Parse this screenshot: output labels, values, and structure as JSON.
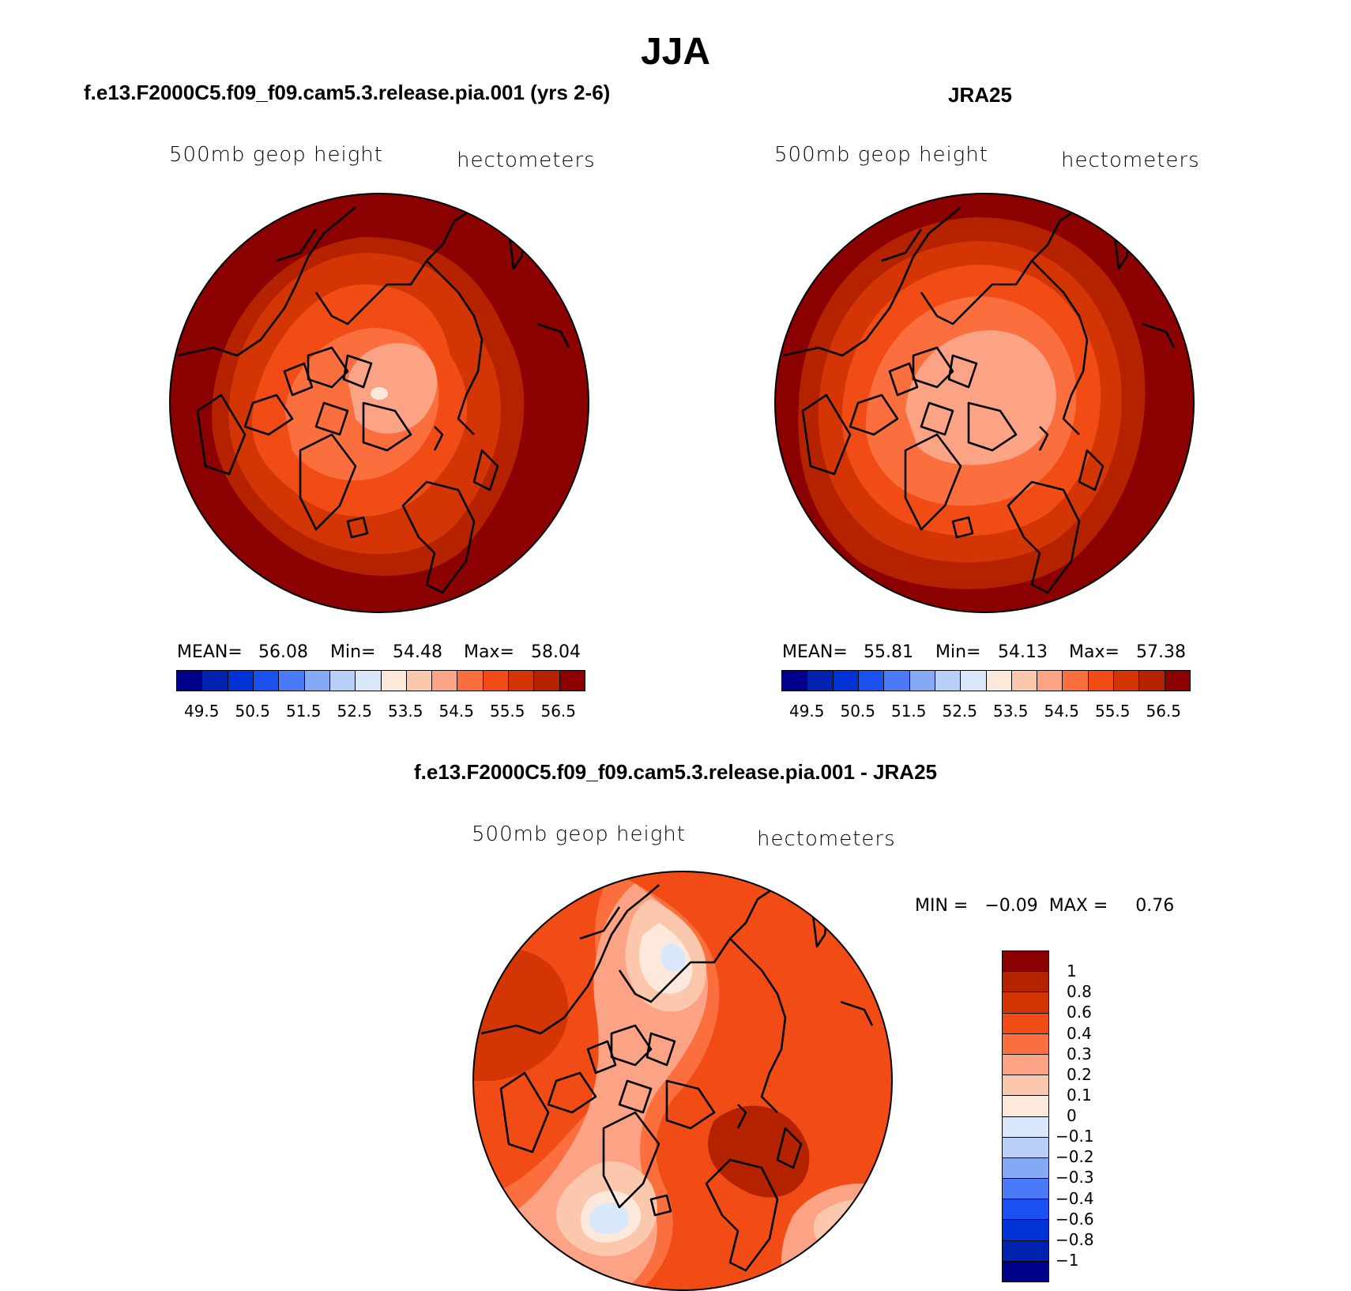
{
  "figure": {
    "title": "JJA",
    "panels": {
      "model": {
        "title": "f.e13.F2000C5.f09_f09.cam5.3.release.pia.001 (yrs 2-6)",
        "variable": "500mb geop height",
        "units": "hectometers",
        "mean_label": "MEAN=",
        "mean": "56.08",
        "min_label": "Min=",
        "min": "54.48",
        "max_label": "Max=",
        "max": "58.04"
      },
      "obs": {
        "title": "JRA25",
        "variable": "500mb geop height",
        "units": "hectometers",
        "mean_label": "MEAN=",
        "mean": "55.81",
        "min_label": "Min=",
        "min": "54.13",
        "max_label": "Max=",
        "max": "57.38"
      },
      "diff": {
        "title": "f.e13.F2000C5.f09_f09.cam5.3.release.pia.001 - JRA25",
        "variable": "500mb geop height",
        "units": "hectometers",
        "minmax_text": "MIN =   −0.09  MAX =     0.76"
      }
    }
  },
  "chart_data": [
    {
      "type": "heatmap",
      "projection": "north-polar-stereographic",
      "title": "f.e13.F2000C5.f09_f09.cam5.3.release.pia.001 (yrs 2-6)",
      "variable": "500mb geop height",
      "units": "hectometers",
      "stats": {
        "mean": 56.08,
        "min": 54.48,
        "max": 58.04
      },
      "contour_levels": [
        49.5,
        50.0,
        50.5,
        51.0,
        51.5,
        52.0,
        52.5,
        53.0,
        53.5,
        54.0,
        54.5,
        55.0,
        55.5,
        56.0,
        56.5
      ],
      "colorbar_labels": [
        "49.5",
        "50.5",
        "51.5",
        "52.5",
        "53.5",
        "54.5",
        "55.5",
        "56.5"
      ],
      "colors": [
        "#00008b",
        "#0022b0",
        "#0033d6",
        "#1a4ff0",
        "#4a7af7",
        "#85a9f5",
        "#b9cff8",
        "#d8e8fa",
        "#fde9dc",
        "#fcc8ad",
        "#fca385",
        "#fb6f3e",
        "#f24c16",
        "#d33504",
        "#b52200",
        "#8b0000"
      ],
      "colorbar_position": "bottom"
    },
    {
      "type": "heatmap",
      "projection": "north-polar-stereographic",
      "title": "JRA25",
      "variable": "500mb geop height",
      "units": "hectometers",
      "stats": {
        "mean": 55.81,
        "min": 54.13,
        "max": 57.38
      },
      "contour_levels": [
        49.5,
        50.0,
        50.5,
        51.0,
        51.5,
        52.0,
        52.5,
        53.0,
        53.5,
        54.0,
        54.5,
        55.0,
        55.5,
        56.0,
        56.5
      ],
      "colorbar_labels": [
        "49.5",
        "50.5",
        "51.5",
        "52.5",
        "53.5",
        "54.5",
        "55.5",
        "56.5"
      ],
      "colors": [
        "#00008b",
        "#0022b0",
        "#0033d6",
        "#1a4ff0",
        "#4a7af7",
        "#85a9f5",
        "#b9cff8",
        "#d8e8fa",
        "#fde9dc",
        "#fcc8ad",
        "#fca385",
        "#fb6f3e",
        "#f24c16",
        "#d33504",
        "#b52200",
        "#8b0000"
      ],
      "colorbar_position": "bottom"
    },
    {
      "type": "heatmap",
      "projection": "north-polar-stereographic",
      "title": "f.e13.F2000C5.f09_f09.cam5.3.release.pia.001 - JRA25",
      "variable": "500mb geop height",
      "units": "hectometers",
      "stats": {
        "min": -0.09,
        "max": 0.76
      },
      "contour_levels": [
        -1,
        -0.8,
        -0.6,
        -0.4,
        -0.3,
        -0.2,
        -0.1,
        0,
        0.1,
        0.2,
        0.3,
        0.4,
        0.6,
        0.8,
        1
      ],
      "colorbar_labels": [
        "1",
        "0.8",
        "0.6",
        "0.4",
        "0.3",
        "0.2",
        "0.1",
        "0",
        "−0.1",
        "−0.2",
        "−0.3",
        "−0.4",
        "−0.6",
        "−0.8",
        "−1"
      ],
      "colors": [
        "#8b0000",
        "#b52200",
        "#d33504",
        "#f24c16",
        "#fb6f3e",
        "#fca385",
        "#fcc8ad",
        "#fde9dc",
        "#d8e8fa",
        "#b9cff8",
        "#85a9f5",
        "#4a7af7",
        "#1a4ff0",
        "#0033d6",
        "#0022b0",
        "#00008b"
      ],
      "colorbar_position": "right"
    }
  ]
}
